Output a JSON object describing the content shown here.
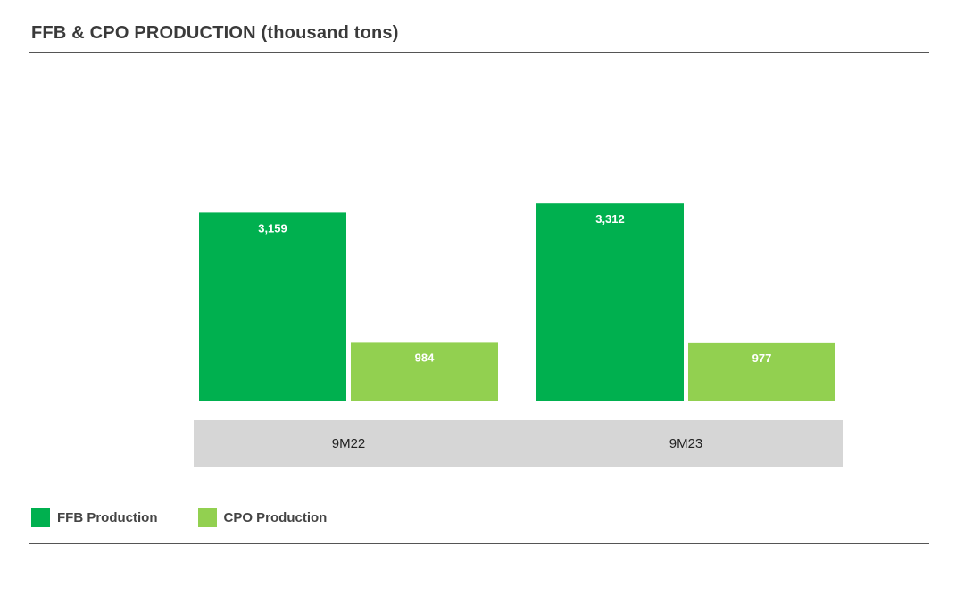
{
  "title": "FFB & CPO PRODUCTION (thousand tons)",
  "chart_data": {
    "type": "bar",
    "title": "FFB & CPO PRODUCTION (thousand tons)",
    "xlabel": "",
    "ylabel": "",
    "categories": [
      "9M22",
      "9M23"
    ],
    "series": [
      {
        "name": "FFB Production",
        "values": [
          3159,
          3312
        ],
        "labels": [
          "3,159",
          "3,312"
        ],
        "color": "#00b04f"
      },
      {
        "name": "CPO Production",
        "values": [
          984,
          977
        ],
        "labels": [
          "984",
          "977"
        ],
        "color": "#92d050"
      }
    ],
    "ylim": [
      0,
      3600
    ],
    "grid": false,
    "legend": "bottom-left"
  },
  "colors": {
    "category_band": "#d6d6d6",
    "rule": "#555555"
  }
}
